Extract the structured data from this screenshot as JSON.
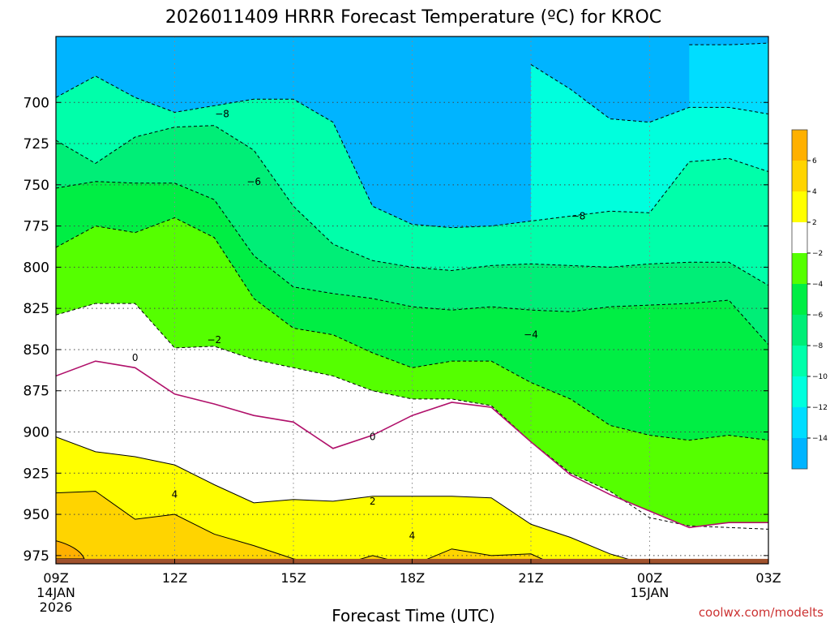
{
  "chart_data": {
    "type": "contour",
    "title": "2026011409 HRRR Forecast Temperature (ºC) for KROC",
    "xlabel": "Forecast Time (UTC)",
    "credit": "coolwx.com/modelts",
    "x_range": [
      "2026-01-14T09Z",
      "2026-01-15T03Z"
    ],
    "y_range_hPa": [
      660,
      980
    ],
    "y_ticks": [
      "700",
      "725",
      "750",
      "775",
      "800",
      "825",
      "850",
      "875",
      "900",
      "925",
      "950",
      "975"
    ],
    "x_ticks": [
      {
        "label": "09Z",
        "sub1": "14JAN",
        "sub2": "2026"
      },
      {
        "label": "12Z",
        "sub1": "",
        "sub2": ""
      },
      {
        "label": "15Z",
        "sub1": "",
        "sub2": ""
      },
      {
        "label": "18Z",
        "sub1": "",
        "sub2": ""
      },
      {
        "label": "21Z",
        "sub1": "",
        "sub2": ""
      },
      {
        "label": "00Z",
        "sub1": "15JAN",
        "sub2": ""
      },
      {
        "label": "03Z",
        "sub1": "",
        "sub2": ""
      }
    ],
    "colorbar": {
      "levels": [
        "6",
        "4",
        "2",
        "−2",
        "−4",
        "−6",
        "−8",
        "−10",
        "−12",
        "−14"
      ],
      "bins": [
        {
          "range": "> 6",
          "color": "#ffb000"
        },
        {
          "range": "4 to 6",
          "color": "#ffd400"
        },
        {
          "range": "2 to 4",
          "color": "#ffff00"
        },
        {
          "range": "-2 to 2",
          "color": "#ffffff"
        },
        {
          "range": "-4 to -2",
          "color": "#55ff00"
        },
        {
          "range": "-6 to -4",
          "color": "#00ee44"
        },
        {
          "range": "-8 to -6",
          "color": "#00ee77"
        },
        {
          "range": "-10 to -8",
          "color": "#00ffaa"
        },
        {
          "range": "-12 to -10",
          "color": "#00ffdd"
        },
        {
          "range": "-14 to -12",
          "color": "#00ddff"
        },
        {
          "range": "< -14",
          "color": "#00b4ff"
        }
      ]
    },
    "ground_color": "#a0522d",
    "contour_labels": [
      "−8",
      "−6",
      "−8",
      "−4",
      "−2",
      "0",
      "0",
      "2",
      "4",
      "4"
    ],
    "isotherms_hPa": {
      "x_hours": [
        0,
        1,
        2,
        3,
        4,
        5,
        6,
        7,
        8,
        9,
        10,
        11,
        12,
        13,
        14,
        15,
        16,
        17,
        18
      ],
      "t_minus14": [
        null,
        null,
        null,
        null,
        null,
        null,
        null,
        null,
        null,
        null,
        null,
        null,
        null,
        null,
        null,
        null,
        665,
        665,
        664
      ],
      "t_minus12": [
        null,
        null,
        null,
        null,
        null,
        null,
        null,
        null,
        null,
        null,
        null,
        null,
        677,
        692,
        710,
        712,
        703,
        703,
        707
      ],
      "t_minus10": [
        697,
        684,
        697,
        706,
        702,
        698,
        698,
        712,
        763,
        774,
        776,
        775,
        772,
        769,
        766,
        767,
        736,
        734,
        742
      ],
      "t_minus8": [
        723,
        737,
        721,
        715,
        714,
        729,
        763,
        786,
        796,
        800,
        802,
        799,
        798,
        799,
        800,
        798,
        797,
        797,
        811
      ],
      "t_minus6": [
        752,
        748,
        749,
        749,
        759,
        793,
        812,
        816,
        819,
        824,
        826,
        824,
        826,
        827,
        824,
        823,
        822,
        820,
        847
      ],
      "t_minus4": [
        788,
        775,
        779,
        770,
        782,
        819,
        837,
        841,
        852,
        861,
        857,
        857,
        870,
        880,
        896,
        902,
        905,
        902,
        905
      ],
      "t_minus2": [
        829,
        822,
        822,
        849,
        848,
        856,
        861,
        866,
        875,
        880,
        880,
        884,
        906,
        925,
        936,
        952,
        957,
        958,
        959
      ],
      "t_0": [
        866,
        857,
        861,
        877,
        883,
        890,
        894,
        910,
        902,
        890,
        882,
        885,
        906,
        926,
        938,
        948,
        958,
        955,
        955
      ],
      "t_2": [
        903,
        912,
        915,
        920,
        932,
        943,
        941,
        942,
        939,
        939,
        939,
        940,
        956,
        964,
        974,
        981,
        988,
        988,
        988
      ],
      "t_4": [
        937,
        936,
        953,
        950,
        962,
        969,
        977,
        982,
        975,
        981,
        971,
        975,
        974,
        985,
        990,
        990,
        990,
        990,
        990
      ]
    }
  }
}
